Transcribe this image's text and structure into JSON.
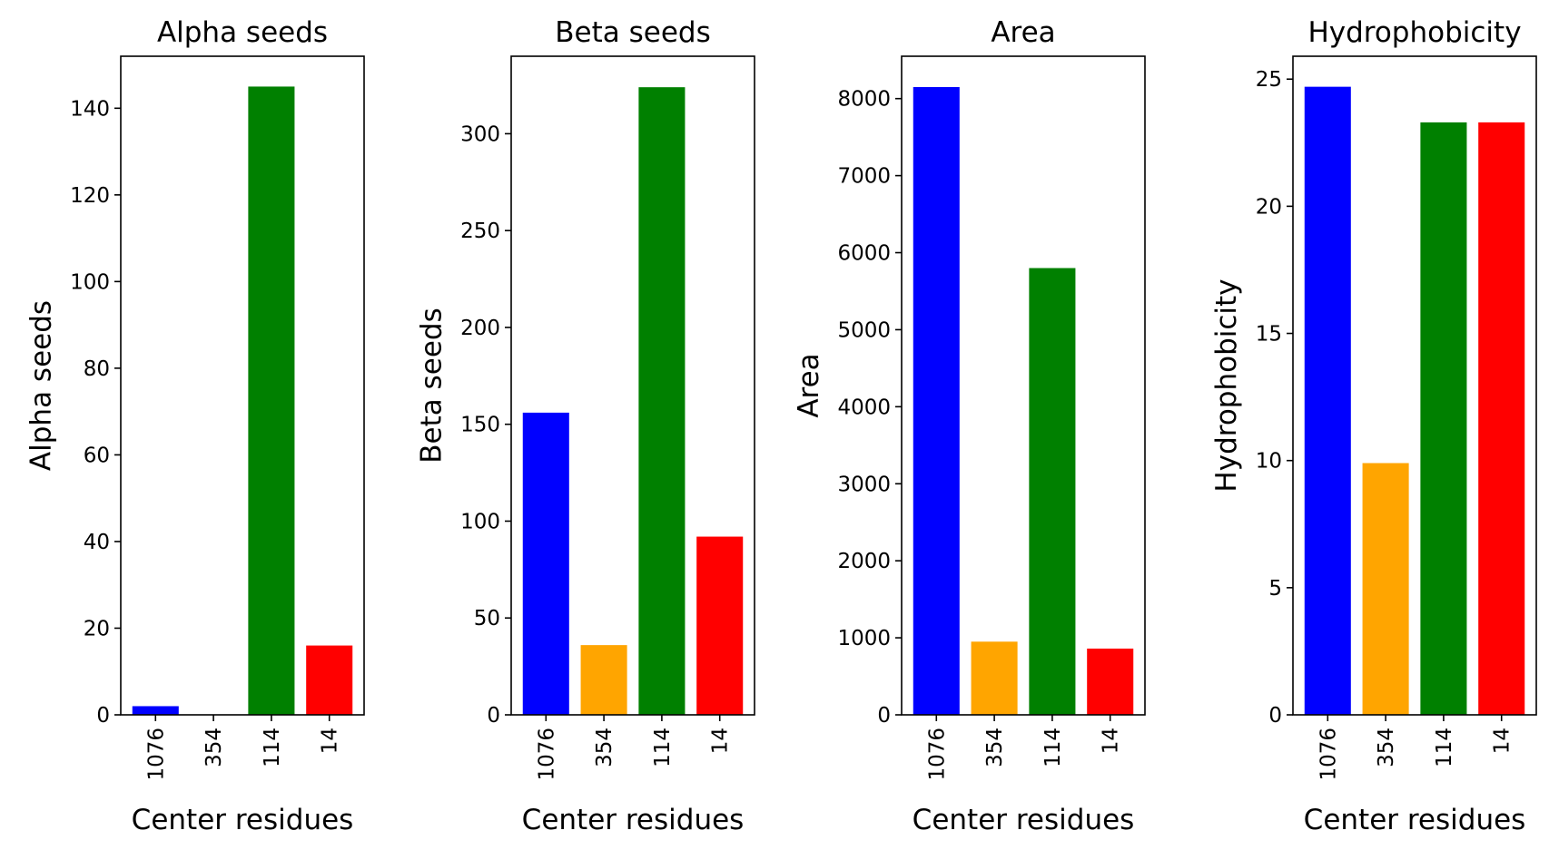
{
  "chart_data": [
    {
      "type": "bar",
      "title": "Alpha seeds",
      "xlabel": "Center residues",
      "ylabel": "Alpha seeds",
      "categories": [
        "1076",
        "354",
        "114",
        "14"
      ],
      "values": [
        2,
        0,
        145,
        16
      ],
      "colors": [
        "#0000ff",
        "#ffa500",
        "#008000",
        "#ff0000"
      ],
      "ylim": [
        0,
        152
      ],
      "yticks": [
        0,
        20,
        40,
        60,
        80,
        100,
        120,
        140
      ]
    },
    {
      "type": "bar",
      "title": "Beta seeds",
      "xlabel": "Center residues",
      "ylabel": "Beta seeds",
      "categories": [
        "1076",
        "354",
        "114",
        "14"
      ],
      "values": [
        156,
        36,
        324,
        92
      ],
      "colors": [
        "#0000ff",
        "#ffa500",
        "#008000",
        "#ff0000"
      ],
      "ylim": [
        0,
        340
      ],
      "yticks": [
        0,
        50,
        100,
        150,
        200,
        250,
        300
      ]
    },
    {
      "type": "bar",
      "title": "Area",
      "xlabel": "Center residues",
      "ylabel": "Area",
      "categories": [
        "1076",
        "354",
        "114",
        "14"
      ],
      "values": [
        8150,
        950,
        5800,
        860
      ],
      "colors": [
        "#0000ff",
        "#ffa500",
        "#008000",
        "#ff0000"
      ],
      "ylim": [
        0,
        8550
      ],
      "yticks": [
        0,
        1000,
        2000,
        3000,
        4000,
        5000,
        6000,
        7000,
        8000
      ]
    },
    {
      "type": "bar",
      "title": "Hydrophobicity",
      "xlabel": "Center residues",
      "ylabel": "Hydrophobicity",
      "categories": [
        "1076",
        "354",
        "114",
        "14"
      ],
      "values": [
        24.7,
        9.9,
        23.3,
        23.3
      ],
      "colors": [
        "#0000ff",
        "#ffa500",
        "#008000",
        "#ff0000"
      ],
      "ylim": [
        0,
        25.9
      ],
      "yticks": [
        0,
        5,
        10,
        15,
        20,
        25
      ]
    }
  ]
}
